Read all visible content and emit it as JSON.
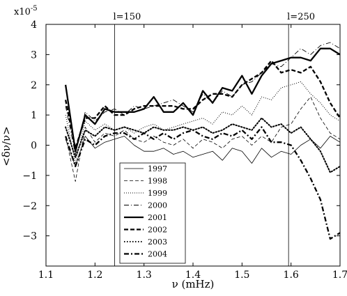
{
  "chart_data": {
    "type": "line",
    "xlabel": "ν  (mHz)",
    "ylabel": "<δν/ν>",
    "y_multiplier": "x10",
    "y_multiplier_exp": "-5",
    "xlim": [
      1.1,
      1.7
    ],
    "ylim": [
      -4,
      4
    ],
    "x_ticks": [
      {
        "value": 1.1,
        "label": "1.1"
      },
      {
        "value": 1.2,
        "label": "1.2"
      },
      {
        "value": 1.3,
        "label": "1.3"
      },
      {
        "value": 1.4,
        "label": "1.4"
      },
      {
        "value": 1.5,
        "label": "1.5"
      },
      {
        "value": 1.6,
        "label": "1.6"
      },
      {
        "value": 1.7,
        "label": "1.7"
      }
    ],
    "y_ticks": [
      {
        "value": 4,
        "label": "4"
      },
      {
        "value": 3,
        "label": "3"
      },
      {
        "value": 2,
        "label": "2"
      },
      {
        "value": 1,
        "label": "1"
      },
      {
        "value": 0,
        "label": "0"
      },
      {
        "value": -1,
        "label": "−1"
      },
      {
        "value": -2,
        "label": "−2"
      },
      {
        "value": -3,
        "label": "−3"
      }
    ],
    "annotations": [
      {
        "label": "l=150",
        "x": 1.24
      },
      {
        "label": "l=250",
        "x": 1.595
      }
    ],
    "legend_position": "lower-left",
    "x": [
      1.14,
      1.16,
      1.18,
      1.2,
      1.22,
      1.24,
      1.26,
      1.28,
      1.3,
      1.32,
      1.34,
      1.36,
      1.38,
      1.4,
      1.42,
      1.44,
      1.46,
      1.48,
      1.5,
      1.52,
      1.54,
      1.56,
      1.58,
      1.6,
      1.62,
      1.64,
      1.66,
      1.68,
      1.7
    ],
    "series": [
      {
        "name": "1997",
        "style": "thin-solid",
        "values": [
          0.2,
          -0.7,
          0.3,
          -0.1,
          0.1,
          0.2,
          0.3,
          0.0,
          -0.2,
          -0.2,
          -0.1,
          -0.3,
          -0.2,
          -0.4,
          -0.3,
          -0.2,
          -0.5,
          -0.1,
          -0.2,
          -0.6,
          -0.1,
          -0.4,
          -0.2,
          -0.3,
          0.0,
          0.2,
          -0.1,
          0.3,
          0.1
        ]
      },
      {
        "name": "1998",
        "style": "thin-dashed",
        "values": [
          0.3,
          -1.2,
          0.6,
          0.1,
          0.4,
          0.3,
          0.5,
          0.2,
          0.1,
          0.3,
          0.1,
          0.0,
          0.2,
          -0.1,
          0.2,
          0.1,
          -0.1,
          0.2,
          0.3,
          0.0,
          0.3,
          0.1,
          0.6,
          0.7,
          1.2,
          1.6,
          0.9,
          0.4,
          0.2
        ]
      },
      {
        "name": "1999",
        "style": "dotted",
        "values": [
          1.0,
          -0.6,
          0.8,
          0.5,
          0.7,
          0.5,
          0.6,
          0.4,
          0.6,
          0.7,
          0.5,
          0.6,
          0.7,
          0.8,
          0.9,
          0.7,
          1.1,
          1.0,
          1.3,
          1.0,
          1.6,
          1.5,
          1.9,
          2.0,
          2.1,
          1.7,
          1.4,
          1.0,
          0.8
        ]
      },
      {
        "name": "2000",
        "style": "dash-dot",
        "values": [
          1.3,
          -0.3,
          1.1,
          0.8,
          1.1,
          1.2,
          1.0,
          1.3,
          1.2,
          1.3,
          1.4,
          1.5,
          1.3,
          1.1,
          1.7,
          1.4,
          1.8,
          1.6,
          2.0,
          2.1,
          2.4,
          2.7,
          2.6,
          2.9,
          3.2,
          3.0,
          3.3,
          3.4,
          3.2
        ]
      },
      {
        "name": "2001",
        "style": "thick-solid",
        "values": [
          2.0,
          -0.2,
          1.0,
          0.7,
          1.2,
          1.1,
          1.1,
          1.1,
          1.2,
          1.6,
          1.1,
          1.1,
          1.4,
          1.0,
          1.8,
          1.4,
          1.9,
          1.8,
          2.3,
          1.7,
          2.3,
          2.7,
          2.8,
          2.9,
          2.9,
          2.8,
          3.2,
          3.2,
          3.0
        ]
      },
      {
        "name": "2002",
        "style": "thick-dashed",
        "values": [
          1.5,
          -0.1,
          0.9,
          0.9,
          1.3,
          1.0,
          1.0,
          1.2,
          1.3,
          1.3,
          1.3,
          1.3,
          1.2,
          1.2,
          1.5,
          1.7,
          1.7,
          1.6,
          2.0,
          2.2,
          2.4,
          2.8,
          2.4,
          2.5,
          2.4,
          2.6,
          2.1,
          1.4,
          0.9
        ]
      },
      {
        "name": "2003",
        "style": "thick-dotted",
        "values": [
          0.6,
          -0.4,
          0.5,
          0.3,
          0.6,
          0.5,
          0.6,
          0.5,
          0.4,
          0.6,
          0.5,
          0.5,
          0.6,
          0.5,
          0.6,
          0.4,
          0.5,
          0.7,
          0.6,
          0.5,
          0.9,
          0.6,
          0.7,
          0.4,
          0.6,
          0.2,
          -0.2,
          -0.9,
          -0.7
        ]
      },
      {
        "name": "2004",
        "style": "thick-dash-dot",
        "values": [
          0.3,
          -0.7,
          0.2,
          0.0,
          0.3,
          0.4,
          0.4,
          0.2,
          0.4,
          0.2,
          0.4,
          0.2,
          0.4,
          0.5,
          0.3,
          0.2,
          0.4,
          0.3,
          0.5,
          0.2,
          0.6,
          0.1,
          0.1,
          0.0,
          -0.5,
          -1.1,
          -1.8,
          -3.1,
          -2.9
        ]
      }
    ]
  }
}
